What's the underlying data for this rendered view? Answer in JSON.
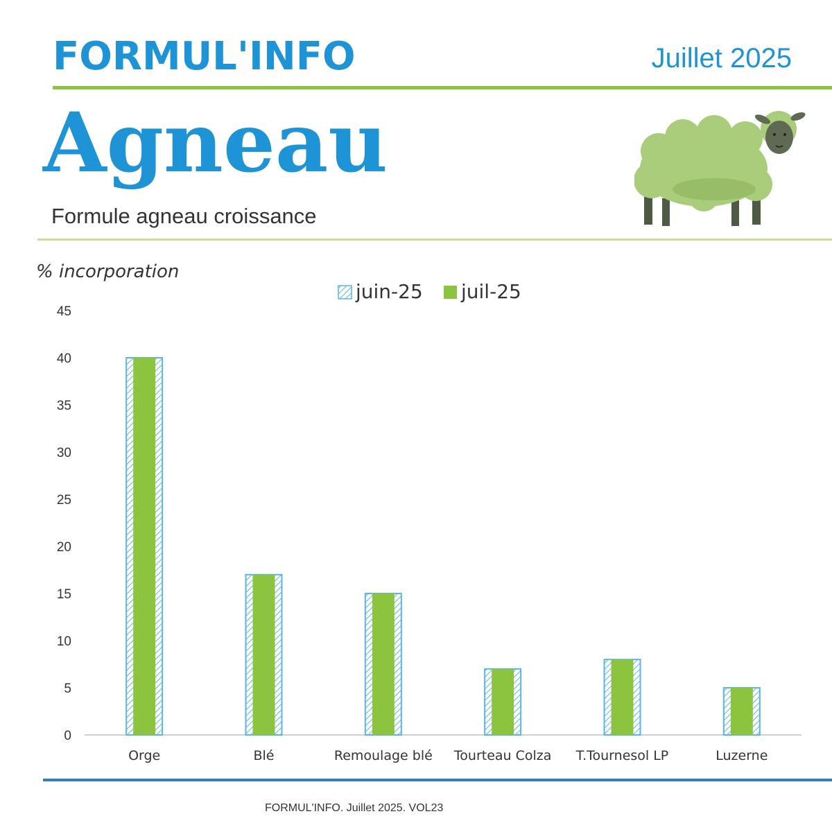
{
  "header": {
    "brand": "FORMUL'INFO",
    "date": "Juillet 2025",
    "title": "Agneau",
    "subtitle": "Formule agneau croissance"
  },
  "illustration": {
    "icon": "sheep-icon"
  },
  "colors": {
    "accent_blue": "#1e93d6",
    "accent_green": "#8dc43f",
    "hatch_blue": "#5bb4e5"
  },
  "chart_data": {
    "type": "bar",
    "ylabel": "% incorporation",
    "xlabel": "",
    "ylim": [
      0,
      45
    ],
    "yticks": [
      0,
      5,
      10,
      15,
      20,
      25,
      30,
      35,
      40,
      45
    ],
    "grid": false,
    "legend_position": "top-center",
    "categories": [
      "Orge",
      "Blé",
      "Remoulage blé",
      "Tourteau Colza",
      "T.Tournesol LP",
      "Luzerne"
    ],
    "series": [
      {
        "name": "juin-25",
        "values": [
          40,
          17,
          15,
          7,
          8,
          5
        ],
        "style": "hatched",
        "color": "#5bb4e5"
      },
      {
        "name": "juil-25",
        "values": [
          40,
          17,
          15,
          7,
          8,
          5
        ],
        "style": "solid",
        "color": "#8dc43f"
      }
    ]
  },
  "footer": {
    "text": "FORMUL'INFO. Juillet 2025. VOL23"
  }
}
